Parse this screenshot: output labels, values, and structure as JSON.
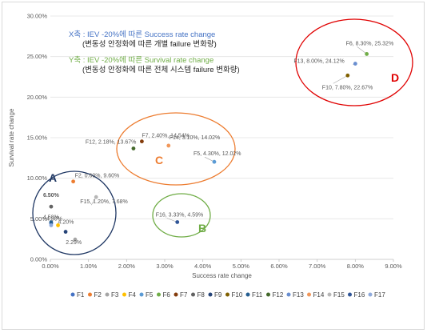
{
  "chart_data": {
    "type": "scatter",
    "xlabel": "Success rate change",
    "ylabel": "Survival rate change",
    "xlim": [
      0,
      9
    ],
    "ylim": [
      0,
      30
    ],
    "x_ticks": [
      "0.00%",
      "1.00%",
      "2.00%",
      "3.00%",
      "4.00%",
      "5.00%",
      "6.00%",
      "7.00%",
      "8.00%",
      "9.00%"
    ],
    "y_ticks": [
      "0.00%",
      "5.00%",
      "10.00%",
      "15.00%",
      "20.00%",
      "25.00%",
      "30.00%"
    ],
    "grid": "horizontal",
    "legend_position": "bottom",
    "annotations": [
      {
        "text": "X축 : IEV -20%에 따른 Success rate change",
        "color": "#4472c4"
      },
      {
        "text": "(변동성 안정화에 따른 개별 failure 변화량)",
        "color": "#262626"
      },
      {
        "text": "Y축 : IEV -20%에 따른 Survival rate change",
        "color": "#70ad47"
      },
      {
        "text": "(변동성 안정화에 따른 전체 시스템 failure 변화량)",
        "color": "#262626"
      }
    ],
    "groups": [
      {
        "label": "A",
        "color": "#203864"
      },
      {
        "label": "B",
        "color": "#70ad47"
      },
      {
        "label": "C",
        "color": "#ed7d31"
      },
      {
        "label": "D",
        "color": "#e00000"
      }
    ],
    "series": [
      {
        "name": "F1",
        "color": "#4472c4",
        "x": 0.02,
        "y": 4.4,
        "label": ""
      },
      {
        "name": "F2",
        "color": "#ed7d31",
        "x": 0.6,
        "y": 9.6,
        "label": "F2, 0.60%, 9.60%"
      },
      {
        "name": "F3",
        "color": "#a5a5a5",
        "x": 0.65,
        "y": 2.45,
        "label": ""
      },
      {
        "name": "F4",
        "color": "#ffc000",
        "x": 0.2,
        "y": 4.2,
        "label": "4.20%"
      },
      {
        "name": "F5",
        "color": "#5b9bd5",
        "x": 4.3,
        "y": 12.02,
        "label": "F5, 4.30%, 12.02%"
      },
      {
        "name": "F6",
        "color": "#70ad47",
        "x": 8.3,
        "y": 25.32,
        "label": "F6, 8.30%, 25.32%"
      },
      {
        "name": "F7",
        "color": "#843c0c",
        "x": 2.4,
        "y": 14.54,
        "label": "F7, 2.40%, 14.54%"
      },
      {
        "name": "F8",
        "color": "#636363",
        "x": 0.02,
        "y": 6.5,
        "label": "6.50%"
      },
      {
        "name": "F9",
        "color": "#264478",
        "x": 0.4,
        "y": 3.4,
        "label": ""
      },
      {
        "name": "F10",
        "color": "#806000",
        "x": 7.8,
        "y": 22.67,
        "label": "F10, 7.80%, 22.67%"
      },
      {
        "name": "F11",
        "color": "#255e91",
        "x": 0.02,
        "y": 4.58,
        "label": "4.58%"
      },
      {
        "name": "F12",
        "color": "#43682b",
        "x": 2.18,
        "y": 13.67,
        "label": "F12, 2.18%, 13.67%"
      },
      {
        "name": "F13",
        "color": "#698ed0",
        "x": 8.0,
        "y": 24.12,
        "label": "F13, 8.00%, 24.12%"
      },
      {
        "name": "F14",
        "color": "#f1975a",
        "x": 3.1,
        "y": 14.02,
        "label": "F14, 3.10%, 14.02%"
      },
      {
        "name": "F15",
        "color": "#b7b7b7",
        "x": 1.2,
        "y": 7.68,
        "label": "F15, 1.20%, 7.68%"
      },
      {
        "name": "F16",
        "color": "#2f5597",
        "x": 3.33,
        "y": 4.59,
        "label": "F16, 3.33%, 4.59%"
      },
      {
        "name": "F17",
        "color": "#8faadc",
        "x": 0.02,
        "y": 4.2,
        "label": ""
      }
    ],
    "extra_labels": [
      "4.30%",
      "2.29%"
    ]
  }
}
